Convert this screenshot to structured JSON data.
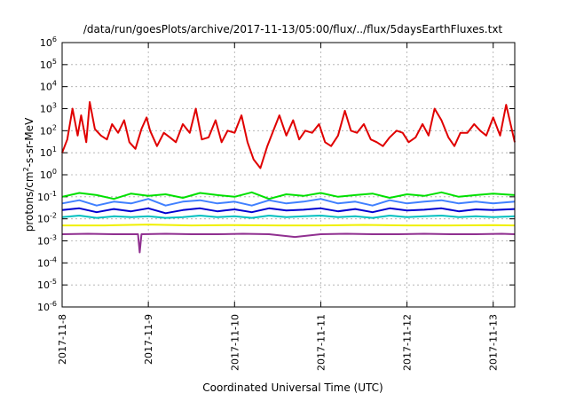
{
  "chart_data": {
    "type": "line",
    "title": "/data/run/goesPlots/archive/2017-11-13/05:00/flux/../flux/5daysEarthFluxes.txt",
    "xlabel": "Coordinated Universal Time (UTC)",
    "ylabel": {
      "base": "protons/cm",
      "sup": "2",
      "rest": "-s-sr-MeV"
    },
    "y_scale": "log",
    "ylim": [
      1e-06,
      1000000.0
    ],
    "xlim": [
      "2017-11-08",
      "2017-11-13T06:00"
    ],
    "grid": true,
    "y_ticks": [
      {
        "base": "10",
        "exp": "-6"
      },
      {
        "base": "10",
        "exp": "-5"
      },
      {
        "base": "10",
        "exp": "-4"
      },
      {
        "base": "10",
        "exp": "-3"
      },
      {
        "base": "10",
        "exp": "-2"
      },
      {
        "base": "10",
        "exp": "-1"
      },
      {
        "base": "10",
        "exp": "0"
      },
      {
        "base": "10",
        "exp": "1"
      },
      {
        "base": "10",
        "exp": "2"
      },
      {
        "base": "10",
        "exp": "3"
      },
      {
        "base": "10",
        "exp": "4"
      },
      {
        "base": "10",
        "exp": "5"
      },
      {
        "base": "10",
        "exp": "6"
      }
    ],
    "x_ticks": [
      "2017-11-8",
      "2017-11-9",
      "2017-11-10",
      "2017-11-11",
      "2017-11-12",
      "2017-11-13"
    ],
    "series": [
      {
        "color": "#e00000",
        "x": [
          0,
          0.06,
          0.12,
          0.18,
          0.22,
          0.28,
          0.32,
          0.38,
          0.45,
          0.52,
          0.58,
          0.65,
          0.72,
          0.78,
          0.85,
          0.92,
          0.98,
          1.02,
          1.1,
          1.18,
          1.25,
          1.32,
          1.4,
          1.48,
          1.55,
          1.62,
          1.7,
          1.78,
          1.85,
          1.92,
          2.0,
          2.08,
          2.15,
          2.22,
          2.3,
          2.38,
          2.45,
          2.52,
          2.6,
          2.68,
          2.75,
          2.82,
          2.9,
          2.98,
          3.05,
          3.12,
          3.2,
          3.28,
          3.35,
          3.42,
          3.5,
          3.58,
          3.65,
          3.72,
          3.8,
          3.88,
          3.95,
          4.02,
          4.1,
          4.18,
          4.25,
          4.32,
          4.4,
          4.48,
          4.55,
          4.62,
          4.7,
          4.78,
          4.85,
          4.92,
          5.0,
          5.08,
          5.15,
          5.25
        ],
        "values": [
          10,
          40,
          1000,
          60,
          500,
          30,
          2000,
          120,
          60,
          40,
          200,
          80,
          300,
          30,
          15,
          120,
          400,
          100,
          20,
          80,
          50,
          30,
          200,
          80,
          1000,
          40,
          50,
          300,
          30,
          100,
          80,
          500,
          30,
          5,
          2,
          20,
          100,
          500,
          60,
          300,
          40,
          100,
          80,
          200,
          30,
          20,
          60,
          800,
          100,
          80,
          200,
          40,
          30,
          20,
          50,
          100,
          80,
          30,
          50,
          200,
          60,
          1000,
          300,
          50,
          20,
          80,
          80,
          200,
          100,
          60,
          400,
          60,
          1500,
          30
        ]
      },
      {
        "color": "#00e000",
        "x": [
          0,
          0.2,
          0.4,
          0.6,
          0.8,
          1.0,
          1.2,
          1.4,
          1.6,
          1.8,
          2.0,
          2.2,
          2.4,
          2.6,
          2.8,
          3.0,
          3.2,
          3.4,
          3.6,
          3.8,
          4.0,
          4.2,
          4.4,
          4.6,
          4.8,
          5.0,
          5.25
        ],
        "values": [
          0.1,
          0.15,
          0.12,
          0.08,
          0.14,
          0.11,
          0.13,
          0.09,
          0.15,
          0.12,
          0.1,
          0.16,
          0.08,
          0.13,
          0.11,
          0.15,
          0.1,
          0.12,
          0.14,
          0.09,
          0.13,
          0.11,
          0.16,
          0.1,
          0.12,
          0.14,
          0.12
        ]
      },
      {
        "color": "#4080ff",
        "x": [
          0,
          0.2,
          0.4,
          0.6,
          0.8,
          1.0,
          1.2,
          1.4,
          1.6,
          1.8,
          2.0,
          2.2,
          2.4,
          2.6,
          2.8,
          3.0,
          3.2,
          3.4,
          3.6,
          3.8,
          4.0,
          4.2,
          4.4,
          4.6,
          4.8,
          5.0,
          5.25
        ],
        "values": [
          0.05,
          0.07,
          0.04,
          0.06,
          0.05,
          0.08,
          0.04,
          0.06,
          0.07,
          0.05,
          0.06,
          0.04,
          0.07,
          0.05,
          0.06,
          0.08,
          0.05,
          0.06,
          0.04,
          0.07,
          0.05,
          0.06,
          0.07,
          0.05,
          0.06,
          0.05,
          0.06
        ]
      },
      {
        "color": "#0000d0",
        "x": [
          0,
          0.2,
          0.4,
          0.6,
          0.8,
          1.0,
          1.2,
          1.4,
          1.6,
          1.8,
          2.0,
          2.2,
          2.4,
          2.6,
          2.8,
          3.0,
          3.2,
          3.4,
          3.6,
          3.8,
          4.0,
          4.2,
          4.4,
          4.6,
          4.8,
          5.0,
          5.25
        ],
        "values": [
          0.025,
          0.03,
          0.02,
          0.028,
          0.022,
          0.03,
          0.018,
          0.025,
          0.03,
          0.022,
          0.027,
          0.02,
          0.03,
          0.024,
          0.026,
          0.03,
          0.022,
          0.028,
          0.02,
          0.03,
          0.024,
          0.026,
          0.03,
          0.022,
          0.027,
          0.025,
          0.028
        ]
      },
      {
        "color": "#00c0c0",
        "x": [
          0,
          0.2,
          0.4,
          0.6,
          0.8,
          1.0,
          1.2,
          1.4,
          1.6,
          1.8,
          2.0,
          2.2,
          2.4,
          2.6,
          2.8,
          3.0,
          3.2,
          3.4,
          3.6,
          3.8,
          4.0,
          4.2,
          4.4,
          4.6,
          4.8,
          5.0,
          5.25
        ],
        "values": [
          0.012,
          0.014,
          0.011,
          0.013,
          0.012,
          0.013,
          0.011,
          0.012,
          0.014,
          0.012,
          0.013,
          0.011,
          0.014,
          0.012,
          0.013,
          0.014,
          0.012,
          0.013,
          0.011,
          0.014,
          0.012,
          0.013,
          0.014,
          0.012,
          0.013,
          0.012,
          0.013
        ]
      },
      {
        "color": "#f0f000",
        "x": [
          0,
          0.5,
          1.0,
          1.5,
          2.0,
          2.5,
          3.0,
          3.5,
          4.0,
          4.5,
          5.0,
          5.25
        ],
        "values": [
          0.005,
          0.005,
          0.0055,
          0.005,
          0.0052,
          0.005,
          0.005,
          0.0053,
          0.005,
          0.005,
          0.0052,
          0.005
        ]
      },
      {
        "color": "#903090",
        "x": [
          0,
          0.3,
          0.6,
          0.88,
          0.9,
          0.92,
          1.2,
          1.5,
          1.8,
          2.1,
          2.4,
          2.7,
          3.0,
          3.3,
          3.6,
          3.9,
          4.2,
          4.5,
          4.8,
          5.1,
          5.25
        ],
        "values": [
          0.002,
          0.0021,
          0.002,
          0.002,
          0.0003,
          0.002,
          0.0021,
          0.002,
          0.002,
          0.0021,
          0.002,
          0.0015,
          0.002,
          0.0021,
          0.002,
          0.002,
          0.0021,
          0.002,
          0.002,
          0.0021,
          0.002
        ]
      }
    ]
  }
}
